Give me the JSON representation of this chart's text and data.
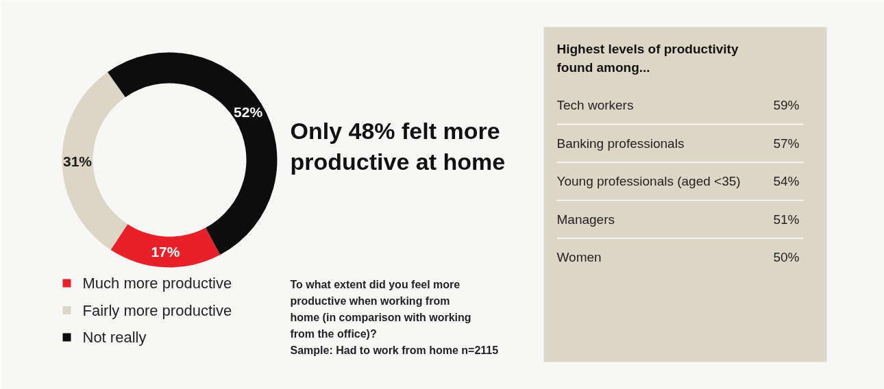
{
  "chart_data": [
    {
      "type": "donut",
      "title": "Only 48% felt more productive at home",
      "categories": [
        "Much more productive",
        "Fairly more productive",
        "Not really"
      ],
      "values": [
        17,
        31,
        52
      ],
      "colors": [
        "#e8202a",
        "#ddd6c6",
        "#0d0d0d"
      ],
      "value_labels": [
        "17%",
        "31%",
        "52%"
      ],
      "legend": "bottom",
      "annotations": [
        "To what extent did you feel more productive when working from home (in comparison with working from the office)?",
        "Sample: Had to work from home n=2115"
      ]
    },
    {
      "type": "other",
      "title": "Highest levels of productivity found among...",
      "categories": [
        "Tech workers",
        "Banking professionals",
        "Young professionals (aged <35)",
        "Managers",
        "Women"
      ],
      "value_labels": [
        "59%",
        "57%",
        "54%",
        "51%",
        "50%"
      ]
    }
  ]
}
